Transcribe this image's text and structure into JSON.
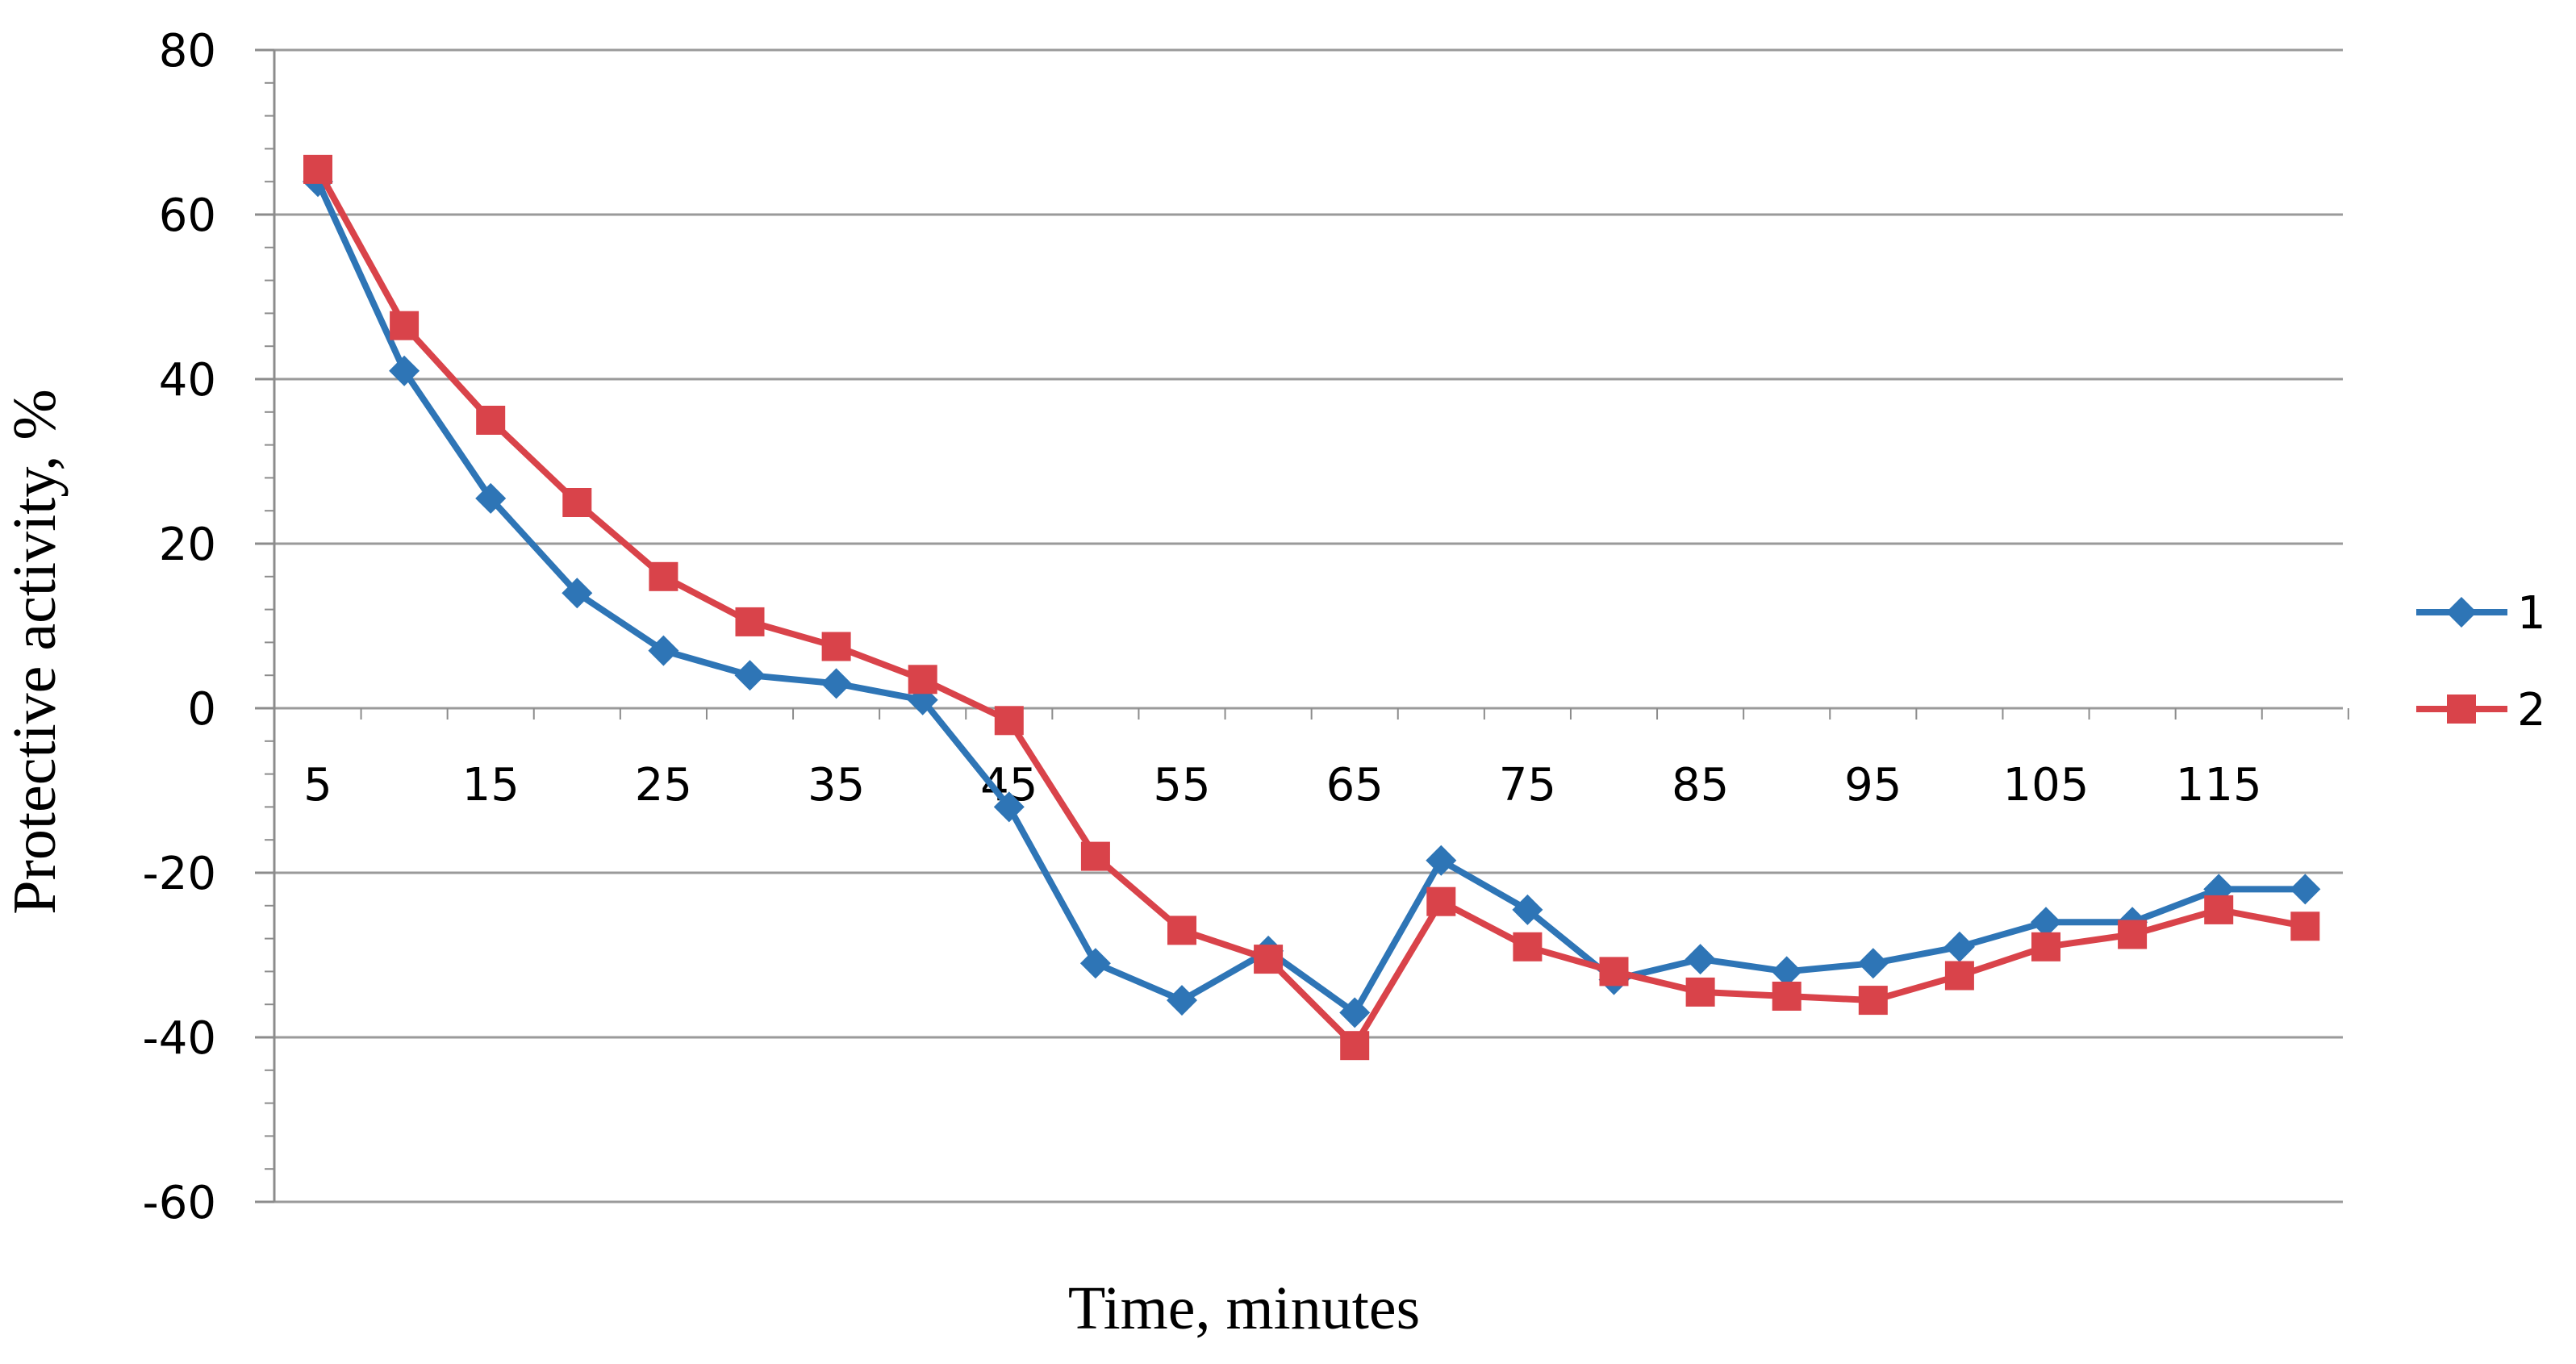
{
  "chart_data": {
    "type": "line",
    "title": "",
    "xlabel": "Time, minutes",
    "ylabel": "Protective activity, %",
    "x": [
      5,
      10,
      15,
      20,
      25,
      30,
      35,
      40,
      45,
      50,
      55,
      60,
      65,
      70,
      75,
      80,
      85,
      90,
      95,
      100,
      105,
      110,
      115,
      120
    ],
    "x_tick_labels": [
      "5",
      "15",
      "25",
      "35",
      "45",
      "55",
      "65",
      "75",
      "85",
      "95",
      "105",
      "115"
    ],
    "y_tick_labels": [
      "80",
      "60",
      "40",
      "20",
      "0",
      "-20",
      "-40",
      "-60"
    ],
    "ylim": [
      -60,
      80
    ],
    "grid": true,
    "legend_position": "right",
    "series": [
      {
        "name": "1",
        "color": "#2e75b6",
        "marker": "diamond",
        "values": [
          64,
          41,
          25.5,
          14,
          7,
          4,
          3,
          1,
          -12,
          -31,
          -35.5,
          -29.5,
          -37,
          -18.5,
          -24.5,
          -33,
          -30.5,
          -32,
          -31,
          -29,
          -26,
          -26,
          -22,
          -22
        ]
      },
      {
        "name": "2",
        "color": "#d9434a",
        "marker": "square",
        "values": [
          65.5,
          46.5,
          35,
          25,
          16,
          10.5,
          7.5,
          3.5,
          -1.5,
          -18,
          -27,
          -30.5,
          -41,
          -23.5,
          -29,
          -32,
          -34.5,
          -35,
          -35.5,
          -32.5,
          -29,
          -27.5,
          -24.5,
          -26.5
        ]
      }
    ]
  }
}
